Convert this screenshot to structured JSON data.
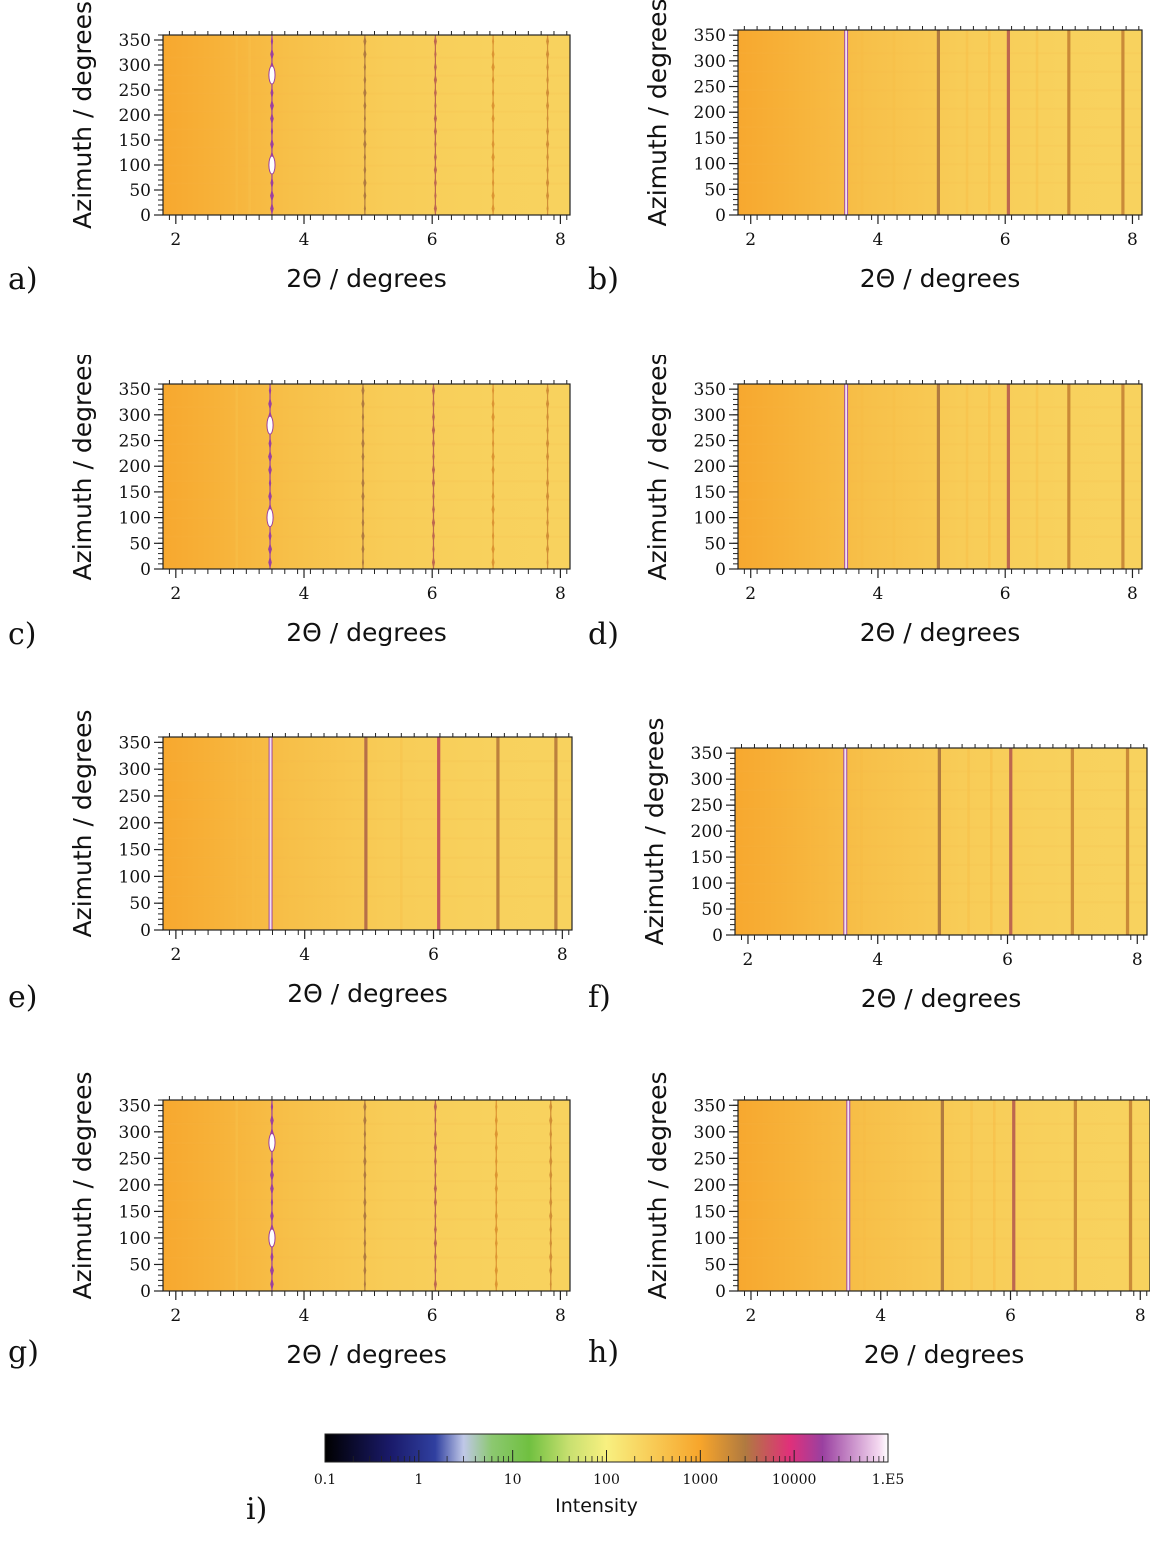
{
  "chart_data": [
    {
      "panel": "a)",
      "type": "heatmap",
      "xlabel": "2Θ / degrees",
      "ylabel": "Azimuth / degrees",
      "x_ticks": [
        2,
        4,
        6,
        8
      ],
      "y_ticks": [
        0,
        50,
        100,
        150,
        200,
        250,
        300,
        350
      ],
      "xlim": [
        1.8,
        8.15
      ],
      "ylim": [
        0,
        360
      ],
      "pattern": "textured",
      "peaks": [
        {
          "x": 3.5,
          "intensity": 20000,
          "width": 0.06
        },
        {
          "x": 4.95,
          "intensity": 3000,
          "width": 0.05
        },
        {
          "x": 6.05,
          "intensity": 4000,
          "width": 0.05
        },
        {
          "x": 6.95,
          "intensity": 1500,
          "width": 0.05
        },
        {
          "x": 7.8,
          "intensity": 1800,
          "width": 0.05
        },
        {
          "x": 2.95,
          "intensity": 500,
          "width": 0.04
        },
        {
          "x": 3.15,
          "intensity": 450,
          "width": 0.04
        }
      ]
    },
    {
      "panel": "b)",
      "type": "heatmap",
      "xlabel": "2Θ / degrees",
      "ylabel": "Azimuth / degrees",
      "x_ticks": [
        2,
        4,
        6,
        8
      ],
      "y_ticks": [
        0,
        50,
        100,
        150,
        200,
        250,
        300,
        350
      ],
      "xlim": [
        1.8,
        8.15
      ],
      "ylim": [
        0,
        360
      ],
      "pattern": "uniform",
      "peaks": [
        {
          "x": 3.5,
          "intensity": 20000,
          "width": 0.06
        },
        {
          "x": 4.95,
          "intensity": 3000,
          "width": 0.05
        },
        {
          "x": 6.05,
          "intensity": 4000,
          "width": 0.05
        },
        {
          "x": 7.0,
          "intensity": 2000,
          "width": 0.05
        },
        {
          "x": 7.85,
          "intensity": 2000,
          "width": 0.05
        },
        {
          "x": 2.95,
          "intensity": 600,
          "width": 0.04
        },
        {
          "x": 3.2,
          "intensity": 550,
          "width": 0.04
        },
        {
          "x": 3.75,
          "intensity": 500,
          "width": 0.04
        },
        {
          "x": 4.25,
          "intensity": 450,
          "width": 0.04
        },
        {
          "x": 5.4,
          "intensity": 450,
          "width": 0.04
        },
        {
          "x": 5.75,
          "intensity": 500,
          "width": 0.04
        },
        {
          "x": 6.5,
          "intensity": 450,
          "width": 0.04
        }
      ]
    },
    {
      "panel": "c)",
      "type": "heatmap",
      "xlabel": "2Θ / degrees",
      "ylabel": "Azimuth / degrees",
      "x_ticks": [
        2,
        4,
        6,
        8
      ],
      "y_ticks": [
        0,
        50,
        100,
        150,
        200,
        250,
        300,
        350
      ],
      "xlim": [
        1.8,
        8.15
      ],
      "ylim": [
        0,
        360
      ],
      "pattern": "textured",
      "peaks": [
        {
          "x": 3.47,
          "intensity": 20000,
          "width": 0.06
        },
        {
          "x": 4.92,
          "intensity": 3000,
          "width": 0.05
        },
        {
          "x": 6.02,
          "intensity": 4000,
          "width": 0.05
        },
        {
          "x": 6.95,
          "intensity": 1500,
          "width": 0.05
        },
        {
          "x": 7.8,
          "intensity": 1800,
          "width": 0.05
        },
        {
          "x": 2.95,
          "intensity": 450,
          "width": 0.04
        }
      ]
    },
    {
      "panel": "d)",
      "type": "heatmap",
      "xlabel": "2Θ / degrees",
      "ylabel": "Azimuth / degrees",
      "x_ticks": [
        2,
        4,
        6,
        8
      ],
      "y_ticks": [
        0,
        50,
        100,
        150,
        200,
        250,
        300,
        350
      ],
      "xlim": [
        1.8,
        8.15
      ],
      "ylim": [
        0,
        360
      ],
      "pattern": "uniform",
      "peaks": [
        {
          "x": 3.5,
          "intensity": 20000,
          "width": 0.06
        },
        {
          "x": 4.95,
          "intensity": 3000,
          "width": 0.05
        },
        {
          "x": 6.05,
          "intensity": 4000,
          "width": 0.05
        },
        {
          "x": 7.0,
          "intensity": 2000,
          "width": 0.05
        },
        {
          "x": 7.85,
          "intensity": 2000,
          "width": 0.05
        },
        {
          "x": 2.95,
          "intensity": 600,
          "width": 0.04
        },
        {
          "x": 3.2,
          "intensity": 550,
          "width": 0.04
        },
        {
          "x": 3.75,
          "intensity": 500,
          "width": 0.04
        },
        {
          "x": 4.25,
          "intensity": 450,
          "width": 0.04
        },
        {
          "x": 5.4,
          "intensity": 450,
          "width": 0.04
        },
        {
          "x": 5.75,
          "intensity": 500,
          "width": 0.04
        },
        {
          "x": 6.5,
          "intensity": 450,
          "width": 0.04
        }
      ]
    },
    {
      "panel": "e)",
      "type": "heatmap",
      "xlabel": "2Θ / degrees",
      "ylabel": "Azimuth / degrees",
      "x_ticks": [
        2,
        4,
        6,
        8
      ],
      "y_ticks": [
        0,
        50,
        100,
        150,
        200,
        250,
        300,
        350
      ],
      "xlim": [
        1.8,
        8.15
      ],
      "ylim": [
        0,
        360
      ],
      "pattern": "uniform",
      "peaks": [
        {
          "x": 3.47,
          "intensity": 20000,
          "width": 0.06
        },
        {
          "x": 4.95,
          "intensity": 3500,
          "width": 0.05
        },
        {
          "x": 6.08,
          "intensity": 5000,
          "width": 0.05
        },
        {
          "x": 7.0,
          "intensity": 2500,
          "width": 0.05
        },
        {
          "x": 7.9,
          "intensity": 2500,
          "width": 0.05
        },
        {
          "x": 2.95,
          "intensity": 550,
          "width": 0.04
        },
        {
          "x": 3.2,
          "intensity": 500,
          "width": 0.04
        },
        {
          "x": 3.75,
          "intensity": 450,
          "width": 0.04
        },
        {
          "x": 5.5,
          "intensity": 400,
          "width": 0.04
        }
      ]
    },
    {
      "panel": "f)",
      "type": "heatmap",
      "xlabel": "2Θ / degrees",
      "ylabel": "Azimuth / degrees",
      "x_ticks": [
        2,
        4,
        6,
        8
      ],
      "y_ticks": [
        0,
        50,
        100,
        150,
        200,
        250,
        300,
        350
      ],
      "xlim": [
        1.8,
        8.15
      ],
      "ylim": [
        0,
        360
      ],
      "pattern": "uniform",
      "peaks": [
        {
          "x": 3.5,
          "intensity": 20000,
          "width": 0.06
        },
        {
          "x": 4.95,
          "intensity": 3000,
          "width": 0.05
        },
        {
          "x": 6.05,
          "intensity": 4000,
          "width": 0.05
        },
        {
          "x": 7.0,
          "intensity": 2000,
          "width": 0.05
        },
        {
          "x": 7.85,
          "intensity": 2000,
          "width": 0.05
        },
        {
          "x": 2.95,
          "intensity": 600,
          "width": 0.04
        },
        {
          "x": 3.2,
          "intensity": 550,
          "width": 0.04
        },
        {
          "x": 3.75,
          "intensity": 500,
          "width": 0.04
        },
        {
          "x": 5.4,
          "intensity": 450,
          "width": 0.04
        },
        {
          "x": 5.75,
          "intensity": 500,
          "width": 0.04
        }
      ]
    },
    {
      "panel": "g)",
      "type": "heatmap",
      "xlabel": "2Θ / degrees",
      "ylabel": "Azimuth / degrees",
      "x_ticks": [
        2,
        4,
        6,
        8
      ],
      "y_ticks": [
        0,
        50,
        100,
        150,
        200,
        250,
        300,
        350
      ],
      "xlim": [
        1.8,
        8.15
      ],
      "ylim": [
        0,
        360
      ],
      "pattern": "textured",
      "peaks": [
        {
          "x": 3.5,
          "intensity": 20000,
          "width": 0.06
        },
        {
          "x": 4.95,
          "intensity": 3000,
          "width": 0.05
        },
        {
          "x": 6.05,
          "intensity": 4000,
          "width": 0.05
        },
        {
          "x": 7.0,
          "intensity": 1500,
          "width": 0.05
        },
        {
          "x": 7.85,
          "intensity": 1800,
          "width": 0.05
        },
        {
          "x": 2.95,
          "intensity": 450,
          "width": 0.04
        }
      ]
    },
    {
      "panel": "h)",
      "type": "heatmap",
      "xlabel": "2Θ / degrees",
      "ylabel": "Azimuth / degrees",
      "x_ticks": [
        2,
        4,
        6,
        8
      ],
      "y_ticks": [
        0,
        50,
        100,
        150,
        200,
        250,
        300,
        350
      ],
      "xlim": [
        1.8,
        8.15
      ],
      "ylim": [
        0,
        360
      ],
      "pattern": "uniform",
      "peaks": [
        {
          "x": 3.5,
          "intensity": 20000,
          "width": 0.06
        },
        {
          "x": 4.95,
          "intensity": 3000,
          "width": 0.05
        },
        {
          "x": 6.05,
          "intensity": 4000,
          "width": 0.05
        },
        {
          "x": 7.0,
          "intensity": 2000,
          "width": 0.05
        },
        {
          "x": 7.85,
          "intensity": 2000,
          "width": 0.05
        },
        {
          "x": 2.95,
          "intensity": 600,
          "width": 0.04
        },
        {
          "x": 3.2,
          "intensity": 550,
          "width": 0.04
        },
        {
          "x": 3.75,
          "intensity": 500,
          "width": 0.04
        },
        {
          "x": 5.4,
          "intensity": 450,
          "width": 0.04
        },
        {
          "x": 5.75,
          "intensity": 500,
          "width": 0.04
        }
      ]
    }
  ],
  "colorbar": {
    "panel": "i)",
    "label": "Intensity",
    "scale": "log",
    "range": [
      0.1,
      100000
    ],
    "tick_labels": [
      "0.1",
      "1",
      "10",
      "100",
      "1000",
      "10000",
      "1.E5"
    ],
    "tick_values": [
      0.1,
      1,
      10,
      100,
      1000,
      10000,
      100000
    ],
    "stops": [
      {
        "value": 0.1,
        "color": "#000000"
      },
      {
        "value": 0.5,
        "color": "#1a1a6a"
      },
      {
        "value": 1.5,
        "color": "#3040a0"
      },
      {
        "value": 3,
        "color": "#c0c8e8"
      },
      {
        "value": 6,
        "color": "#8cc870"
      },
      {
        "value": 15,
        "color": "#70c040"
      },
      {
        "value": 40,
        "color": "#c8e070"
      },
      {
        "value": 100,
        "color": "#f8f080"
      },
      {
        "value": 1000,
        "color": "#f7a52b"
      },
      {
        "value": 3000,
        "color": "#b07a40"
      },
      {
        "value": 9000,
        "color": "#e0307a"
      },
      {
        "value": 20000,
        "color": "#9a40a0"
      },
      {
        "value": 80000,
        "color": "#f4d8f0"
      },
      {
        "value": 100000,
        "color": "#ffffff"
      }
    ]
  }
}
